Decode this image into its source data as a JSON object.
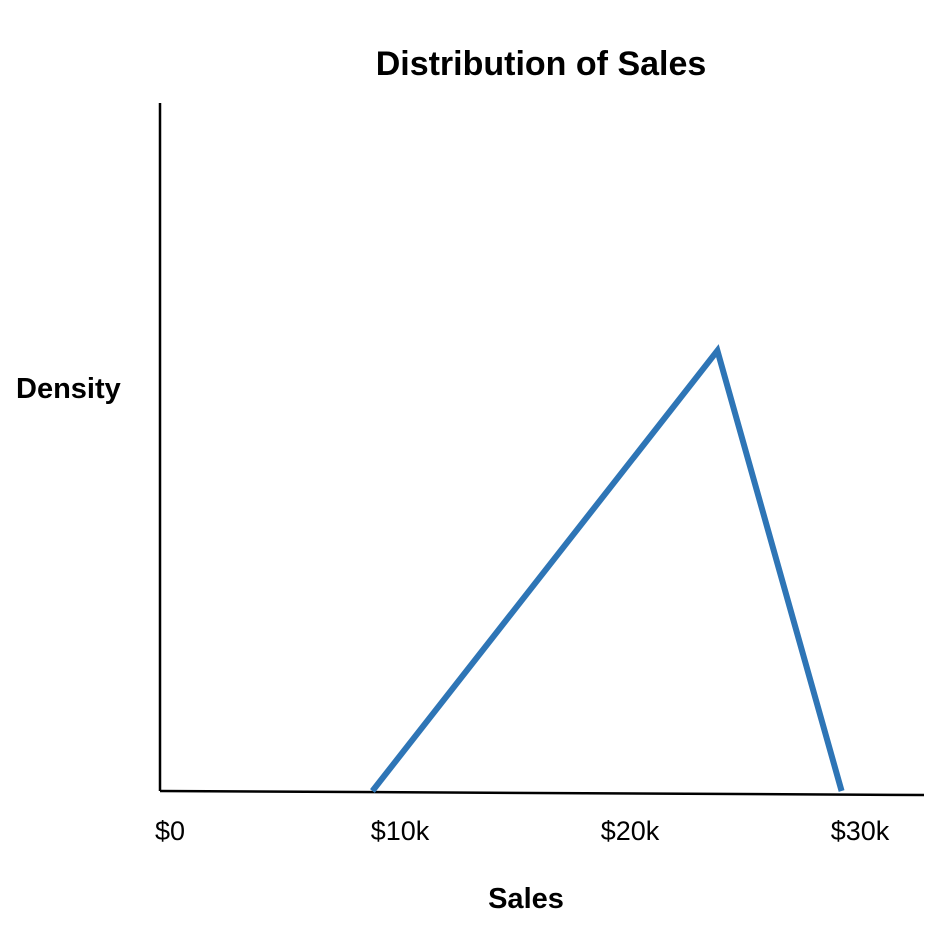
{
  "chart_data": {
    "type": "line",
    "title": "Distribution of Sales",
    "xlabel": "Sales",
    "ylabel": "Density",
    "x_ticks": [
      {
        "value": 0,
        "label": "$0"
      },
      {
        "value": 10000,
        "label": "$10k"
      },
      {
        "value": 20000,
        "label": "$20k"
      },
      {
        "value": 30000,
        "label": "$30k"
      }
    ],
    "xlim": [
      0,
      33000
    ],
    "ylim": [
      0,
      1
    ],
    "y_ticks_shown": false,
    "grid": false,
    "legend": "none",
    "series": [
      {
        "color": "#2e75b6",
        "x": [
          8800,
          23800,
          29200
        ],
        "y": [
          0,
          0.64,
          0
        ]
      }
    ]
  }
}
